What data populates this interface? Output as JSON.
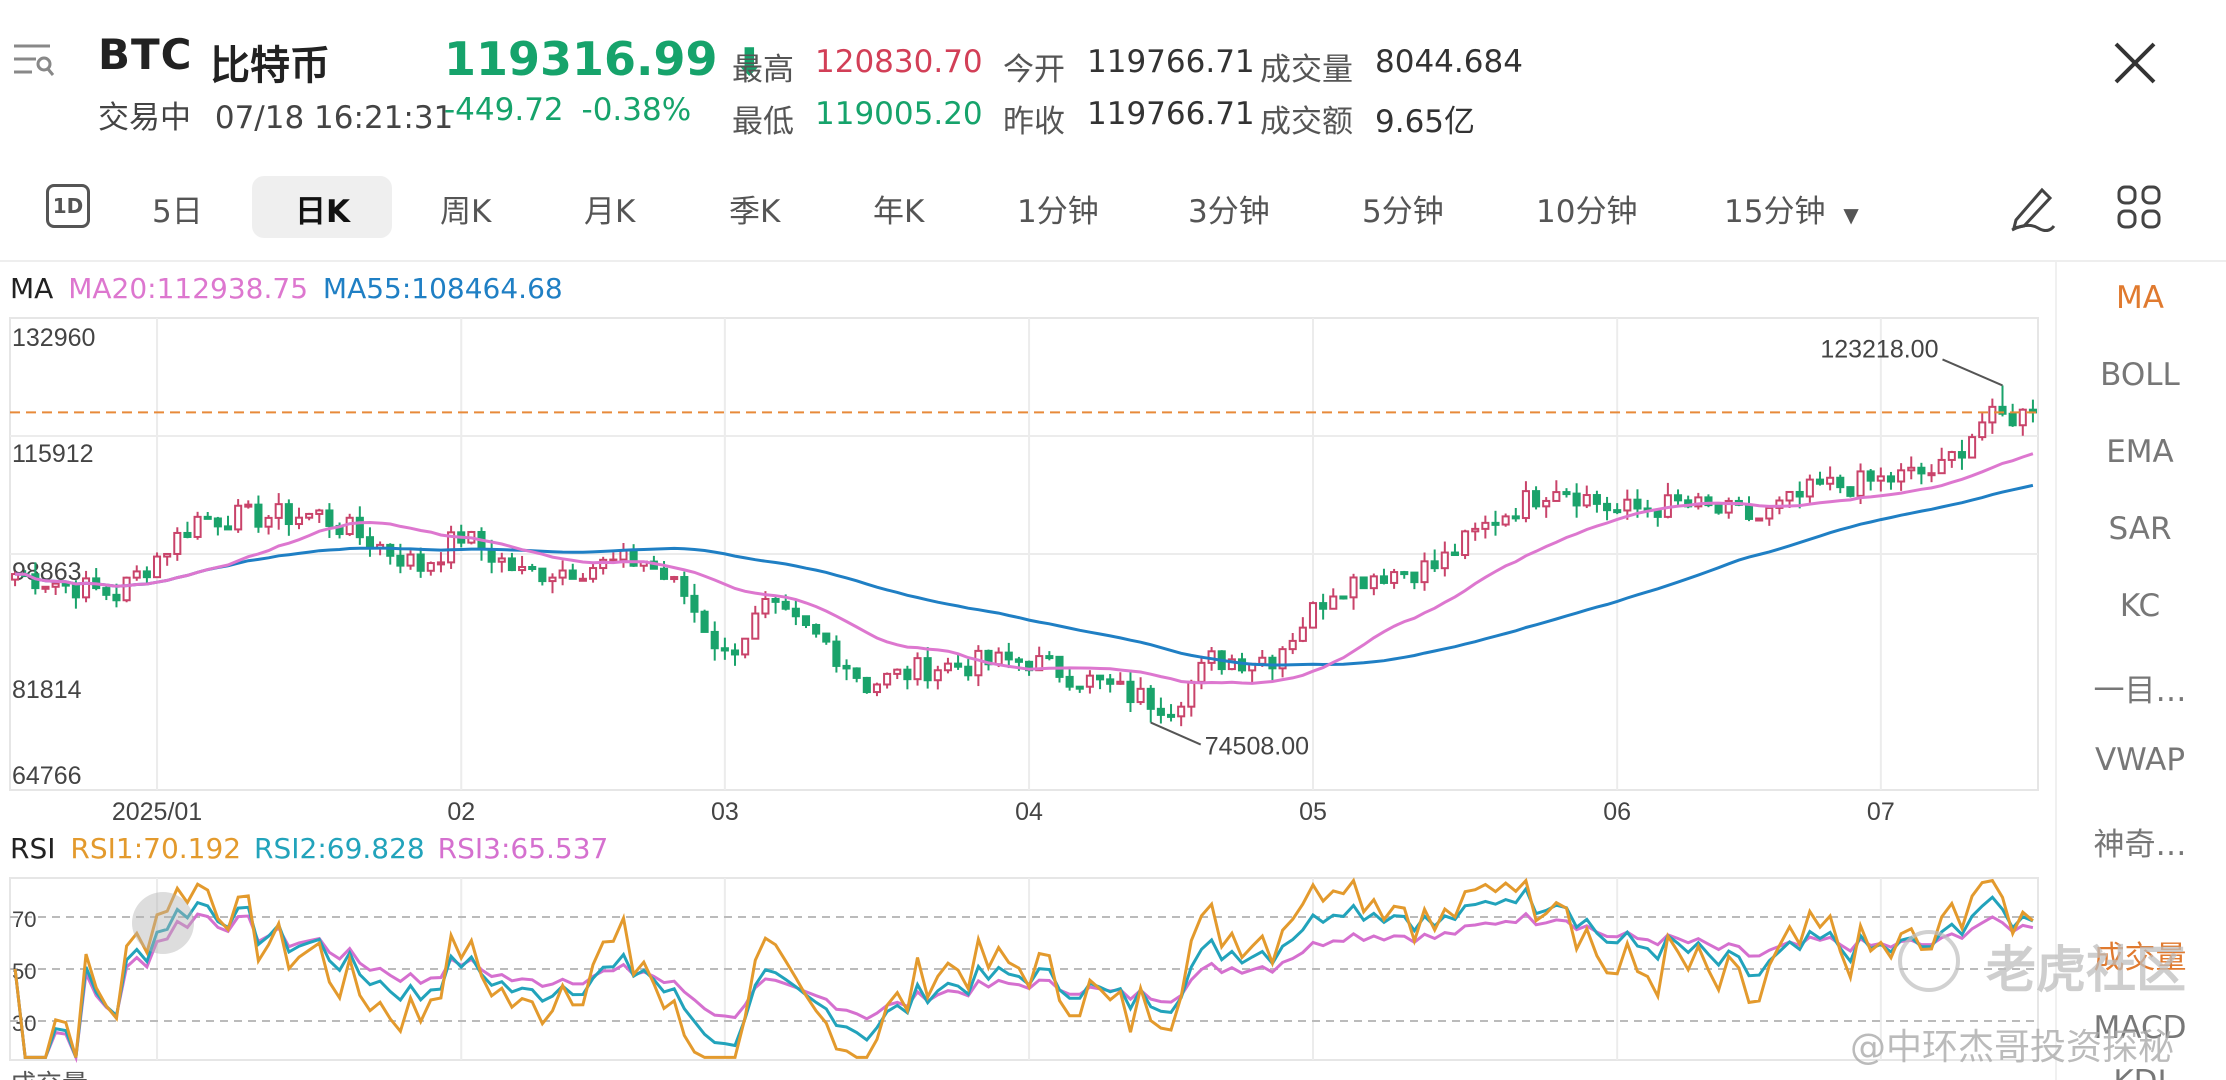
{
  "header": {
    "symbol": "BTC",
    "name": "比特币",
    "status": "交易中",
    "datetime": "07/18 16:21:31",
    "price": "119316.99",
    "change": "-449.72",
    "change_pct": "-0.38%",
    "quote": {
      "high_label": "最高",
      "high": "120830.70",
      "low_label": "最低",
      "low": "119005.20",
      "open_label": "今开",
      "open": "119766.71",
      "prev_close_label": "昨收",
      "prev_close": "119766.71",
      "volume_label": "成交量",
      "volume": "8044.684",
      "turnover_label": "成交额",
      "turnover": "9.65亿"
    }
  },
  "tabs": {
    "items": [
      "5日",
      "日K",
      "周K",
      "月K",
      "季K",
      "年K",
      "1分钟",
      "3分钟",
      "5分钟",
      "10分钟",
      "15分钟"
    ],
    "active": "日K",
    "first_icon_text": "1D"
  },
  "indicator_panel": {
    "items": [
      "MA",
      "BOLL",
      "EMA",
      "SAR",
      "KC",
      "一目…",
      "VWAP",
      "神奇…",
      "成交量",
      "MACD",
      "KDJ"
    ],
    "active": "MA"
  },
  "main_legend": {
    "ma_label": "MA",
    "ma20": "MA20:112938.75",
    "ma55": "MA55:108464.68"
  },
  "rsi_legend": {
    "label": "RSI",
    "rsi1": "RSI1:70.192",
    "rsi2": "RSI2:69.828",
    "rsi3": "RSI3:65.537"
  },
  "bottom_label": "成交量",
  "watermark": {
    "brand": "老虎社区",
    "author": "@中环杰哥投资探秘"
  },
  "colors": {
    "up": "#c9436a",
    "down": "#1aa36b",
    "ma20": "#dd77cf",
    "ma55": "#1f7fc4",
    "rsi1": "#e39a2d",
    "rsi2": "#22a3bb",
    "rsi3": "#d570cf",
    "price_line": "#e88a3a",
    "accent": "#e07a2f"
  },
  "chart_data": [
    {
      "type": "candlestick",
      "ylim": [
        64766,
        132960
      ],
      "yticks": [
        "132960",
        "115912",
        "98863",
        "81814",
        "64766"
      ],
      "xticks": [
        "2025/01",
        "02",
        "03",
        "04",
        "05",
        "06",
        "07"
      ],
      "current_price_line": 119316.99,
      "annotations": [
        {
          "text": "123218.00",
          "value": 123218
        },
        {
          "text": "74508.00",
          "value": 74508
        }
      ],
      "ohlc": [],
      "series": [
        {
          "name": "MA20",
          "values": []
        },
        {
          "name": "MA55",
          "values": []
        }
      ]
    },
    {
      "type": "line",
      "yticks": [
        "70",
        "50",
        "30"
      ],
      "ylim": [
        15,
        85
      ],
      "series": [
        {
          "name": "RSI1",
          "values": []
        },
        {
          "name": "RSI2",
          "values": []
        },
        {
          "name": "RSI3",
          "values": []
        }
      ]
    }
  ]
}
